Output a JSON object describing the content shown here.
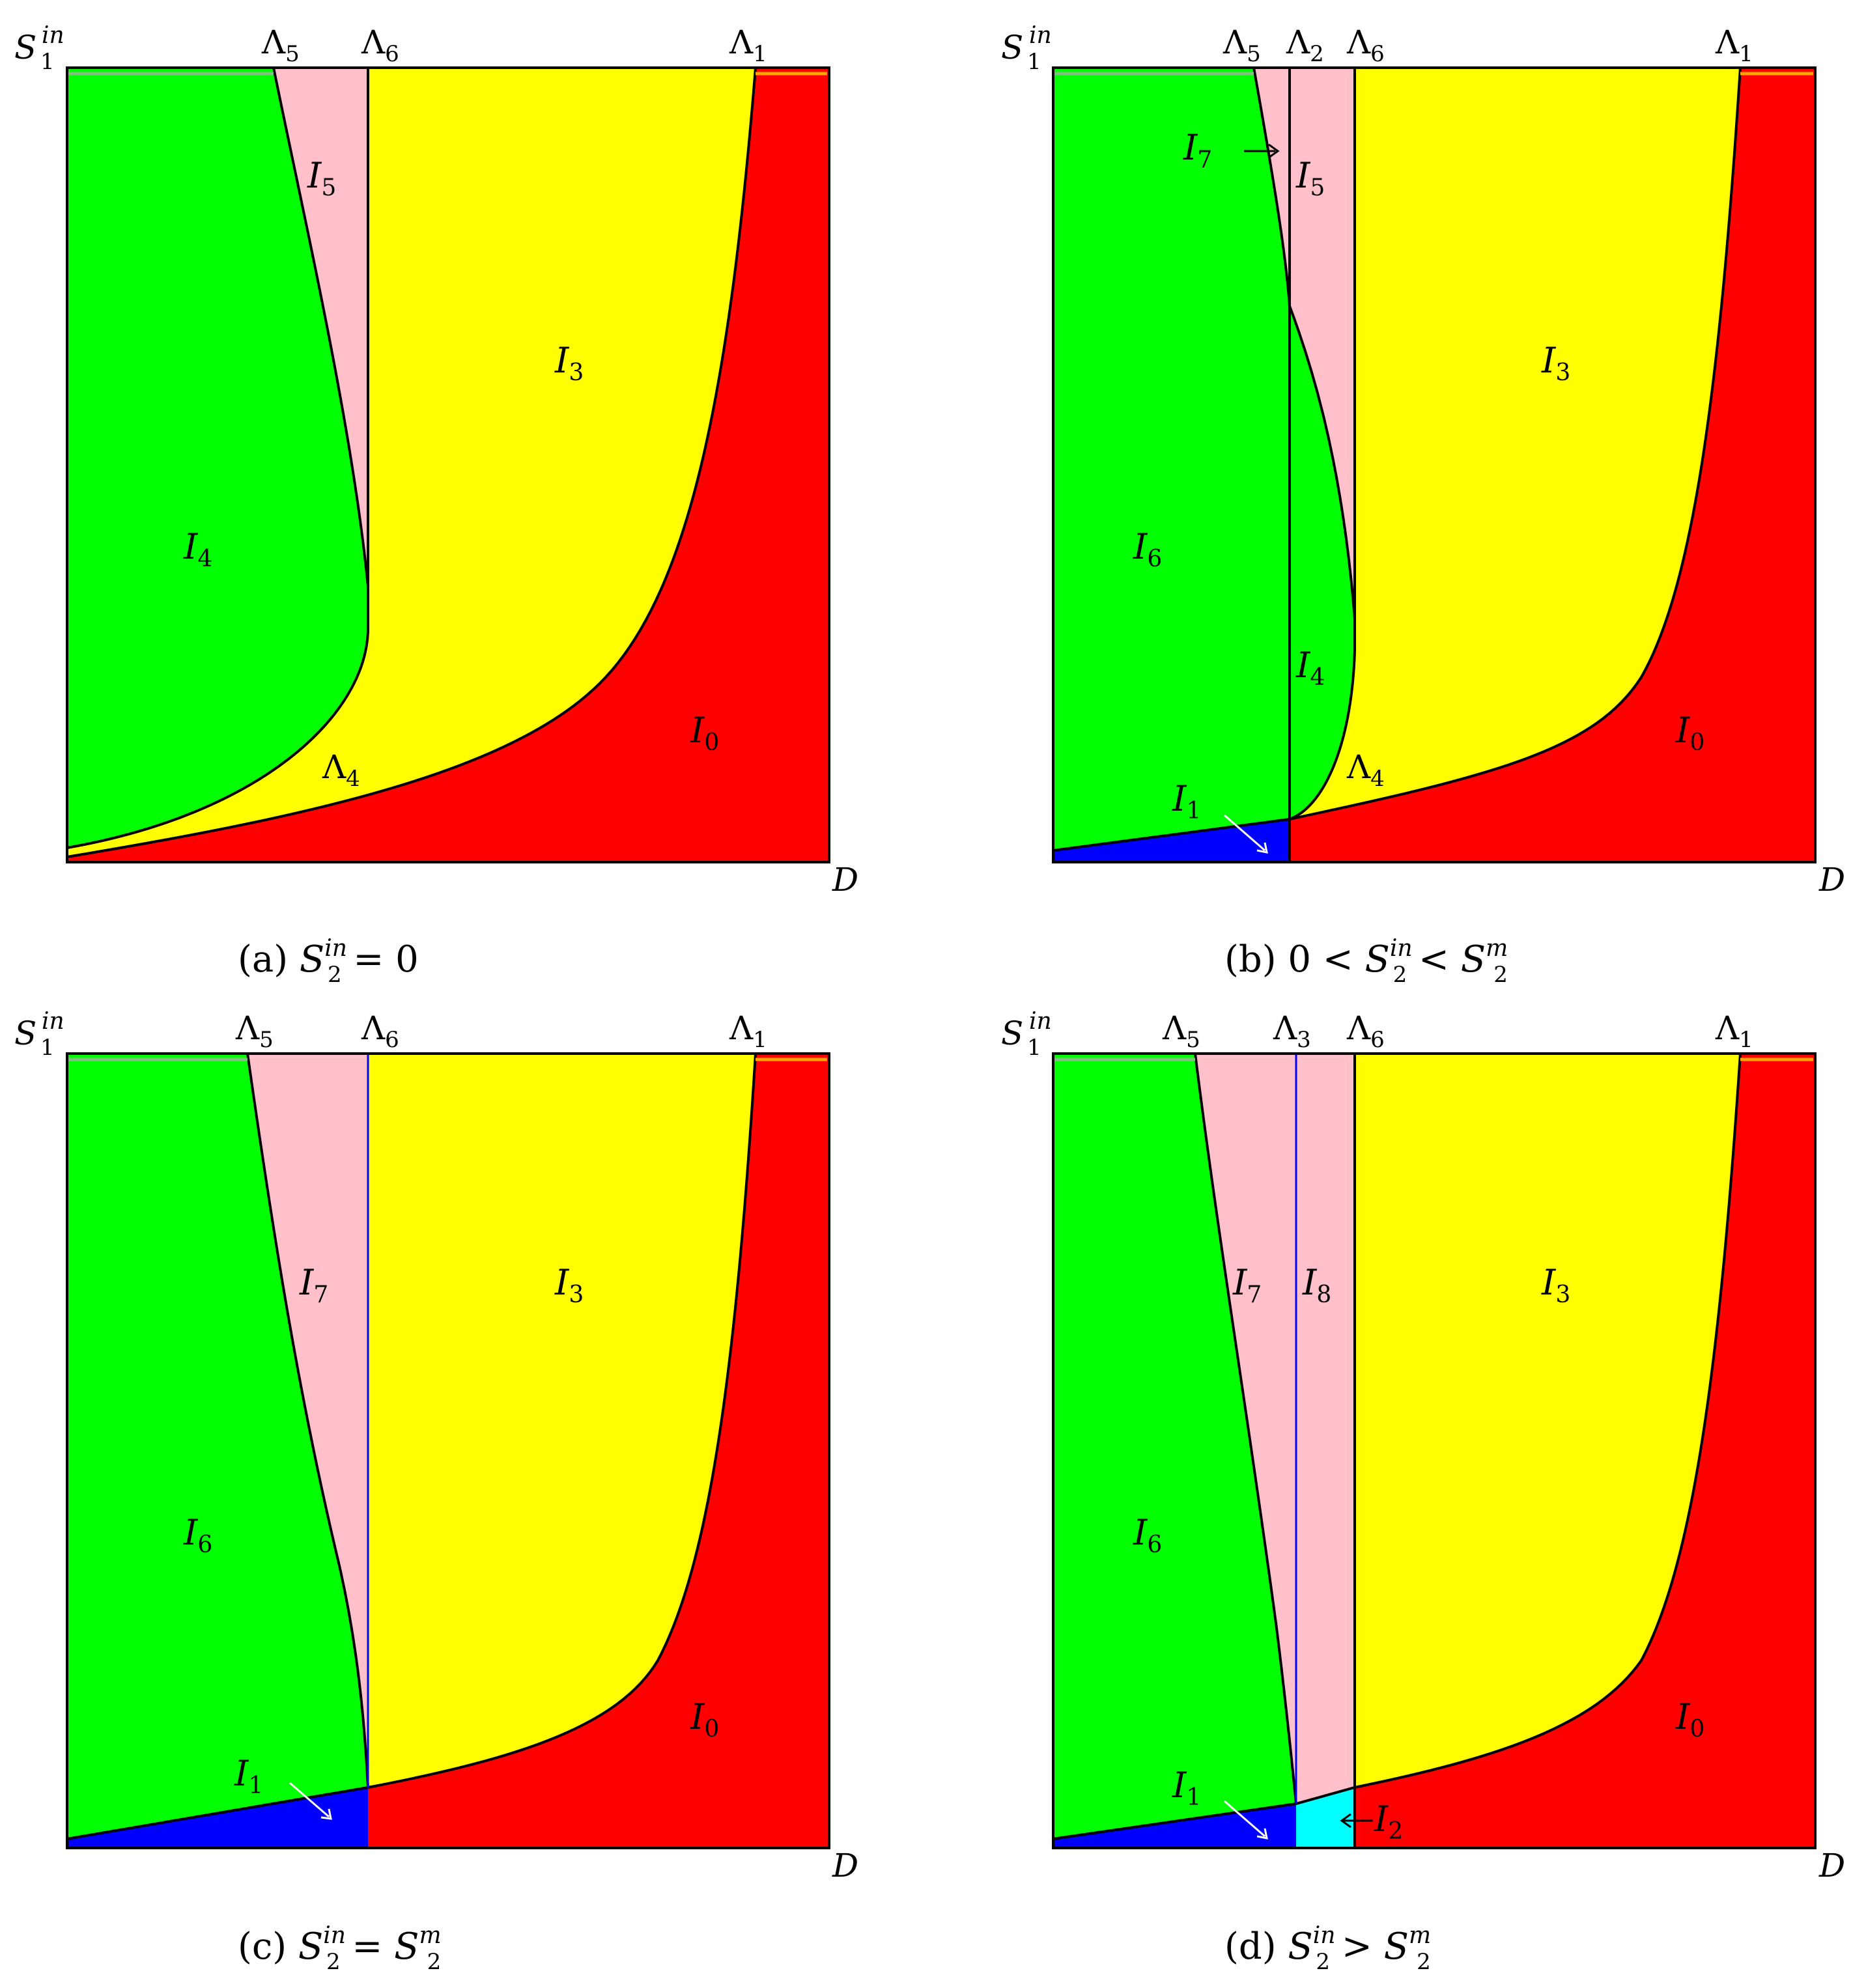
{
  "figure": {
    "y_axis_label": {
      "base": "S",
      "sub": "1",
      "sup": "in"
    },
    "x_axis_label": "D",
    "colors": {
      "I0": "#ff0000",
      "I1": "#0000ff",
      "I2": "#00ffff",
      "I3": "#ffff00",
      "I4": "#00ff00",
      "I5": "#ffc0cb",
      "I6": "#00ff00",
      "I7": "#ffc0cb",
      "I8": "#ffc0cb",
      "curve": "#000000",
      "blue_line": "#0000ff",
      "arrow_white": "#ffffff"
    },
    "panels": [
      {
        "id": "a",
        "caption": {
          "prefix": "(a) ",
          "left_base": "S",
          "left_sub": "2",
          "left_sup": "in",
          "rel": " = 0",
          "right_base": "",
          "right_sub": "",
          "right_sup": "",
          "between": ""
        },
        "lambdas": [
          {
            "base": "Λ",
            "sub": "5"
          },
          {
            "base": "Λ",
            "sub": "6"
          },
          {
            "base": "Λ",
            "sub": "1"
          }
        ],
        "regions": [
          {
            "base": "I",
            "sub": "5"
          },
          {
            "base": "I",
            "sub": "3"
          },
          {
            "base": "I",
            "sub": "4"
          },
          {
            "base": "I",
            "sub": "0"
          }
        ],
        "inner_labels": [
          {
            "base": "Λ",
            "sub": "4"
          }
        ]
      },
      {
        "id": "b",
        "caption": {
          "prefix": "(b) 0 < ",
          "left_base": "S",
          "left_sub": "2",
          "left_sup": "in",
          "rel": " < ",
          "right_base": "S",
          "right_sub": "2",
          "right_sup": "m"
        },
        "lambdas": [
          {
            "base": "Λ",
            "sub": "5"
          },
          {
            "base": "Λ",
            "sub": "2"
          },
          {
            "base": "Λ",
            "sub": "6"
          },
          {
            "base": "Λ",
            "sub": "1"
          }
        ],
        "regions": [
          {
            "base": "I",
            "sub": "7"
          },
          {
            "base": "I",
            "sub": "5"
          },
          {
            "base": "I",
            "sub": "3"
          },
          {
            "base": "I",
            "sub": "6"
          },
          {
            "base": "I",
            "sub": "4"
          },
          {
            "base": "I",
            "sub": "0"
          },
          {
            "base": "I",
            "sub": "1"
          }
        ],
        "inner_labels": [
          {
            "base": "Λ",
            "sub": "4"
          }
        ]
      },
      {
        "id": "c",
        "caption": {
          "prefix": "(c) ",
          "left_base": "S",
          "left_sub": "2",
          "left_sup": "in",
          "rel": " = ",
          "right_base": "S",
          "right_sub": "2",
          "right_sup": "m"
        },
        "lambdas": [
          {
            "base": "Λ",
            "sub": "5"
          },
          {
            "base": "Λ",
            "sub": "6"
          },
          {
            "base": "Λ",
            "sub": "1"
          }
        ],
        "regions": [
          {
            "base": "I",
            "sub": "7"
          },
          {
            "base": "I",
            "sub": "3"
          },
          {
            "base": "I",
            "sub": "6"
          },
          {
            "base": "I",
            "sub": "0"
          },
          {
            "base": "I",
            "sub": "1"
          }
        ],
        "inner_labels": []
      },
      {
        "id": "d",
        "caption": {
          "prefix": "(d) ",
          "left_base": "S",
          "left_sub": "2",
          "left_sup": "in",
          "rel": " > ",
          "right_base": "S",
          "right_sub": "2",
          "right_sup": "m"
        },
        "lambdas": [
          {
            "base": "Λ",
            "sub": "5"
          },
          {
            "base": "Λ",
            "sub": "3"
          },
          {
            "base": "Λ",
            "sub": "6"
          },
          {
            "base": "Λ",
            "sub": "1"
          }
        ],
        "regions": [
          {
            "base": "I",
            "sub": "7"
          },
          {
            "base": "I",
            "sub": "8"
          },
          {
            "base": "I",
            "sub": "3"
          },
          {
            "base": "I",
            "sub": "6"
          },
          {
            "base": "I",
            "sub": "0"
          },
          {
            "base": "I",
            "sub": "1"
          },
          {
            "base": "I",
            "sub": "2"
          }
        ],
        "inner_labels": []
      }
    ]
  }
}
